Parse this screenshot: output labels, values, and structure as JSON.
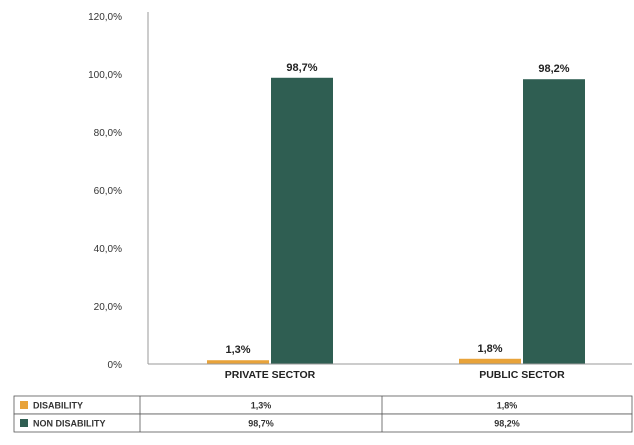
{
  "chart_data": {
    "type": "bar",
    "categories": [
      "PRIVATE SECTOR",
      "PUBLIC SECTOR"
    ],
    "series": [
      {
        "name": "DISABILITY",
        "values": [
          1.3,
          1.8
        ],
        "labels": [
          "1,3%",
          "1,8%"
        ],
        "color": "#e8a33a"
      },
      {
        "name": "NON DISABILITY",
        "values": [
          98.7,
          98.2
        ],
        "labels": [
          "98,7%",
          "98,2%"
        ],
        "color": "#2f5e52"
      }
    ],
    "title": "",
    "xlabel": "",
    "ylabel": "",
    "ylim": [
      0,
      120
    ],
    "yticks": [
      0,
      20,
      40,
      60,
      80,
      100,
      120
    ],
    "ytick_labels": [
      "0%",
      "20,0%",
      "40,0%",
      "60,0%",
      "80,0%",
      "100,0%",
      "120,0%"
    ],
    "grid": false,
    "legend": "data-table-below"
  }
}
